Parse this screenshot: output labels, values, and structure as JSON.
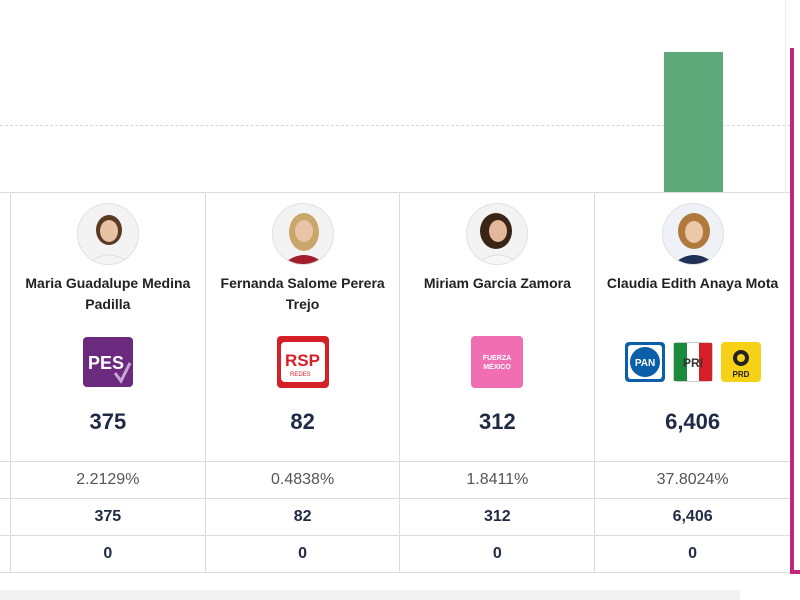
{
  "chart_data": {
    "type": "bar",
    "visible_bar_color": "#5ea97a",
    "visible_bar_height_ratio": 1.0,
    "gridlines": [
      "dashed"
    ]
  },
  "candidates": [
    {
      "name": "Maria Guadalupe Medina Padilla",
      "parties": [
        {
          "id": "pes",
          "label": "PES",
          "color": "#6b2a7d"
        }
      ],
      "votes": "375",
      "percentage": "2.2129%",
      "total": "375",
      "other": "0"
    },
    {
      "name": "Fernanda Salome Perera Trejo",
      "parties": [
        {
          "id": "rsp",
          "label": "RSP",
          "sublabel": "REDES",
          "color": "#d62027"
        }
      ],
      "votes": "82",
      "percentage": "0.4838%",
      "total": "82",
      "other": "0"
    },
    {
      "name": "Miriam Garcia Zamora",
      "parties": [
        {
          "id": "fxm",
          "label": "FUERZA MÉXICO",
          "color": "#f06fb3"
        }
      ],
      "votes": "312",
      "percentage": "1.8411%",
      "total": "312",
      "other": "0"
    },
    {
      "name": "Claudia Edith Anaya Mota",
      "parties": [
        {
          "id": "pan",
          "label": "PAN",
          "color": "#0b5ea8"
        },
        {
          "id": "pri",
          "label": "PRI",
          "color": "#d62027"
        },
        {
          "id": "prd",
          "label": "PRD",
          "color": "#f7d117"
        }
      ],
      "votes": "6,406",
      "percentage": "37.8024%",
      "total": "6,406",
      "other": "0"
    }
  ],
  "accent_color": "#c1267b"
}
